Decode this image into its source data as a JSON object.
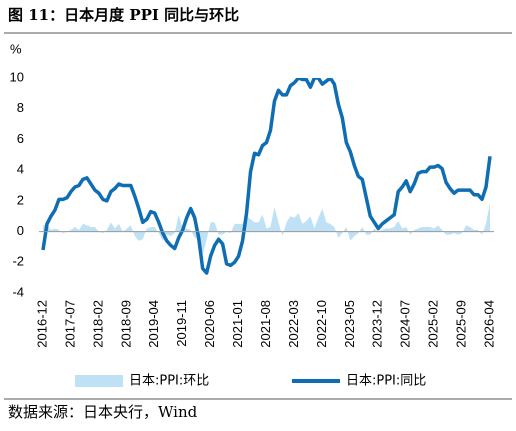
{
  "chart_data": {
    "type": "line-area",
    "title": "图 11：日本月度 PPI 同比与环比",
    "source": "数据来源：日本央行，Wind",
    "y_label": "%",
    "categories": [
      "2016-12",
      null,
      null,
      null,
      null,
      null,
      null,
      "2017-07",
      null,
      null,
      null,
      null,
      null,
      null,
      "2018-02",
      null,
      null,
      null,
      null,
      null,
      null,
      "2018-09",
      null,
      null,
      null,
      null,
      null,
      null,
      "2019-04",
      null,
      null,
      null,
      null,
      null,
      null,
      "2019-11",
      null,
      null,
      null,
      null,
      null,
      null,
      "2020-06",
      null,
      null,
      null,
      null,
      null,
      null,
      "2021-01",
      null,
      null,
      null,
      null,
      null,
      null,
      "2021-08",
      null,
      null,
      null,
      null,
      null,
      null,
      "2022-03",
      null,
      null,
      null,
      null,
      null,
      null,
      "2022-10",
      null,
      null,
      null,
      null,
      null,
      null,
      "2023-05",
      null,
      null,
      null,
      null,
      null,
      null,
      "2023-12",
      null,
      null,
      null,
      null,
      null,
      null,
      "2024-07",
      null,
      null,
      null,
      null,
      null,
      null,
      "2025-02",
      null,
      null,
      null,
      null,
      null,
      null,
      "2025-09",
      null,
      null,
      null,
      null,
      null,
      null,
      "2026-04"
    ],
    "series": [
      {
        "name": "日本:PPI:环比",
        "kind": "area",
        "color": "#bfe1f6",
        "values": [
          0.4,
          0.5,
          0.1,
          0.2,
          0.1,
          -0.1,
          0.0,
          0.1,
          0.3,
          0.1,
          0.5,
          0.4,
          0.3,
          0.3,
          0.0,
          -0.1,
          0.1,
          0.6,
          0.2,
          0.5,
          0.0,
          0.2,
          0.4,
          -0.3,
          -0.6,
          -0.5,
          0.2,
          0.3,
          0.3,
          -0.1,
          -0.6,
          -0.2,
          -0.3,
          -0.1,
          1.1,
          0.2,
          0.2,
          0.1,
          -0.4,
          -0.5,
          -1.5,
          -0.5,
          0.6,
          0.6,
          -0.2,
          -0.2,
          0.0,
          -0.1,
          0.5,
          0.5,
          0.5,
          1.0,
          0.8,
          0.6,
          0.6,
          1.1,
          0.2,
          0.3,
          1.6,
          0.6,
          -0.3,
          0.6,
          1.0,
          0.9,
          1.2,
          0.5,
          0.7,
          1.0,
          0.2,
          0.9,
          1.5,
          0.6,
          0.5,
          0.3,
          -0.4,
          -0.1,
          0.3,
          -0.6,
          -0.3,
          -0.1,
          0.3,
          -0.2,
          -0.2,
          0.2,
          0.0,
          0.1,
          0.2,
          0.2,
          0.3,
          0.7,
          0.2,
          0.3,
          -0.2,
          0.1,
          0.2,
          0.3,
          0.3,
          0.3,
          0.2,
          0.4,
          0.1,
          -0.2,
          -0.2,
          -0.1,
          -0.2,
          -0.1,
          0.4,
          0.3,
          0.1,
          0.1,
          -0.2,
          0.5,
          1.9
        ]
      },
      {
        "name": "日本:PPI:同比",
        "kind": "line",
        "color": "#0f6db3",
        "values": [
          -1.2,
          0.5,
          1.0,
          1.4,
          2.1,
          2.1,
          2.2,
          2.6,
          2.9,
          3.0,
          3.4,
          3.5,
          3.1,
          2.7,
          2.5,
          2.1,
          2.0,
          2.6,
          2.8,
          3.1,
          3.0,
          3.0,
          3.0,
          2.3,
          1.5,
          0.6,
          0.8,
          1.3,
          1.2,
          0.6,
          -0.1,
          -0.6,
          -0.9,
          -1.1,
          -0.4,
          0.1,
          0.9,
          1.5,
          0.9,
          -0.4,
          -2.4,
          -2.7,
          -1.6,
          -0.9,
          -0.5,
          -0.8,
          -2.1,
          -2.2,
          -2.0,
          -1.6,
          -0.6,
          1.2,
          3.9,
          5.1,
          5.0,
          5.6,
          5.8,
          6.6,
          8.5,
          9.2,
          8.9,
          8.9,
          9.5,
          9.7,
          10.0,
          9.9,
          9.9,
          9.4,
          10.0,
          10.0,
          9.6,
          9.8,
          10.0,
          9.6,
          8.3,
          7.4,
          5.8,
          5.2,
          4.3,
          3.6,
          3.4,
          2.2,
          1.0,
          0.6,
          0.2,
          0.5,
          0.7,
          0.9,
          1.1,
          2.6,
          2.9,
          3.3,
          2.6,
          3.1,
          3.8,
          3.9,
          3.9,
          4.2,
          4.2,
          4.3,
          4.1,
          3.2,
          2.8,
          2.5,
          2.7,
          2.7,
          2.7,
          2.7,
          2.4,
          2.4,
          2.1,
          2.9,
          4.9
        ]
      }
    ],
    "ylim": [
      -4,
      10
    ],
    "yticks": [
      -4,
      -2,
      0,
      2,
      4,
      6,
      8,
      10
    ]
  }
}
